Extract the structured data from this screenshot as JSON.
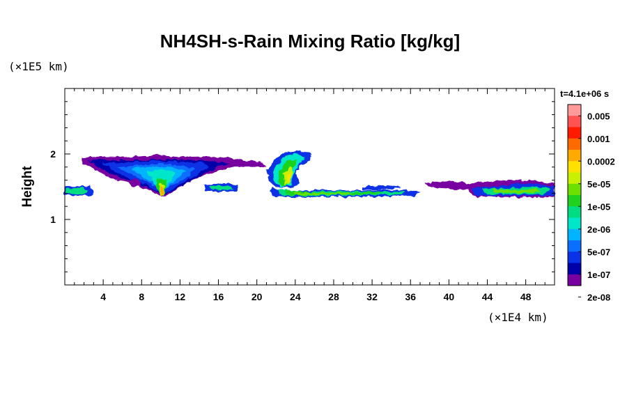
{
  "chart_data": {
    "type": "heatmap",
    "title": "NH4SH-s-Rain Mixing Ratio [kg/kg]",
    "ylabel": "Height",
    "y_unit": "(×1E5 km)",
    "x_unit": "(×1E4 km)",
    "time_label": "t=4.1e+06 s",
    "xlim": [
      0,
      51
    ],
    "ylim": [
      0,
      3
    ],
    "x_ticks": [
      4,
      8,
      12,
      16,
      20,
      24,
      28,
      32,
      36,
      40,
      44,
      48
    ],
    "y_ticks": [
      1,
      2
    ],
    "colorbar": {
      "labels": [
        "0.005",
        "0.001",
        "0.0002",
        "5e-05",
        "1e-05",
        "2e-06",
        "5e-07",
        "1e-07",
        "2e-08"
      ],
      "colors": [
        "#ff9a9a",
        "#ff5252",
        "#ff1a00",
        "#ff6a00",
        "#ffaa00",
        "#ffe000",
        "#c8f000",
        "#6ee000",
        "#1ed21e",
        "#00dc82",
        "#00e6c8",
        "#00b4ff",
        "#0a6eff",
        "#0a32e6",
        "#0000aa",
        "#7800a0"
      ]
    },
    "regions": [
      {
        "x": [
          1.5,
          20.5
        ],
        "y": [
          1.4,
          1.95
        ],
        "max_level": "1e-05",
        "note": "upper cloud band"
      },
      {
        "x": [
          9.8,
          10.5
        ],
        "y": [
          1.35,
          1.55
        ],
        "max_level": "0.0002"
      },
      {
        "x": [
          0,
          51
        ],
        "y": [
          1.35,
          1.5
        ],
        "max_level": "1e-05",
        "note": "lower cloud layer"
      },
      {
        "x": [
          21.5,
          25.5
        ],
        "y": [
          1.4,
          2.0
        ],
        "max_level": "0.0002"
      },
      {
        "x": [
          42,
          51
        ],
        "y": [
          1.35,
          1.6
        ],
        "max_level": "1e-05"
      }
    ]
  }
}
